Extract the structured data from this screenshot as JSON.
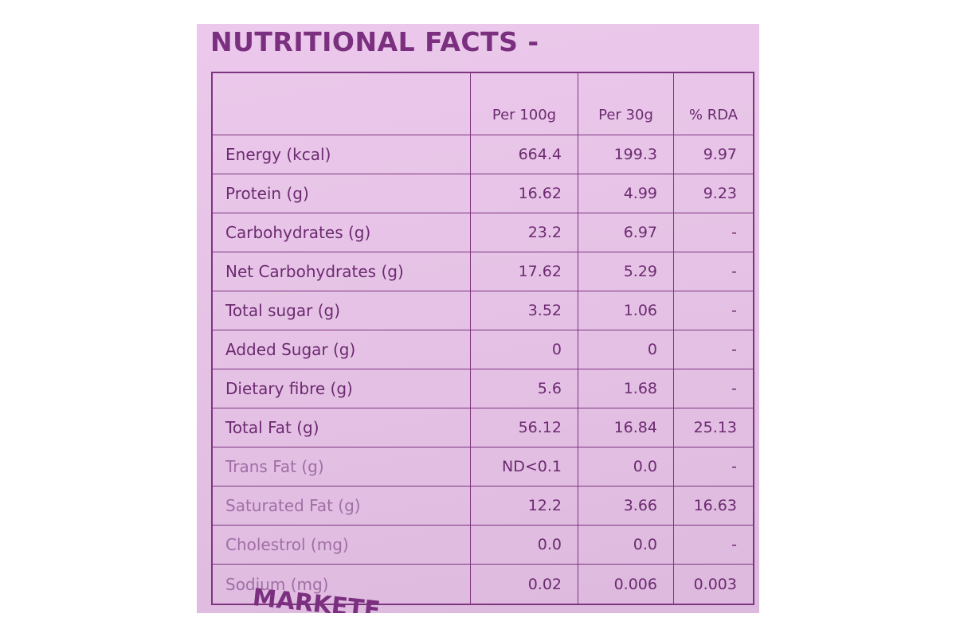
{
  "title": "NUTRITIONAL FACTS -",
  "footer_text": "MARKETE",
  "columns": [
    "",
    "Per 100g",
    "Per 30g",
    "% RDA"
  ],
  "rows": [
    {
      "name": "Energy (kcal)",
      "per100": "664.4",
      "per30": "199.3",
      "rda": "9.97"
    },
    {
      "name": "Protein (g)",
      "per100": "16.62",
      "per30": "4.99",
      "rda": "9.23"
    },
    {
      "name": "Carbohydrates (g)",
      "per100": "23.2",
      "per30": "6.97",
      "rda": "-"
    },
    {
      "name": "Net Carbohydrates (g)",
      "per100": "17.62",
      "per30": "5.29",
      "rda": "-"
    },
    {
      "name": "Total sugar (g)",
      "per100": "3.52",
      "per30": "1.06",
      "rda": "-"
    },
    {
      "name": "Added Sugar (g)",
      "per100": "0",
      "per30": "0",
      "rda": "-"
    },
    {
      "name": "Dietary fibre (g)",
      "per100": "5.6",
      "per30": "1.68",
      "rda": "-"
    },
    {
      "name": "Total Fat (g)",
      "per100": "56.12",
      "per30": "16.84",
      "rda": "25.13"
    },
    {
      "name": "Trans Fat (g)",
      "per100": "ND<0.1",
      "per30": "0.0",
      "rda": "-"
    },
    {
      "name": "Saturated Fat (g)",
      "per100": "12.2",
      "per30": "3.66",
      "rda": "16.63"
    },
    {
      "name": "Cholestrol (mg)",
      "per100": "0.0",
      "per30": "0.0",
      "rda": "-"
    },
    {
      "name": "Sodium (mg)",
      "per100": "0.02",
      "per30": "0.006",
      "rda": "0.003"
    }
  ]
}
